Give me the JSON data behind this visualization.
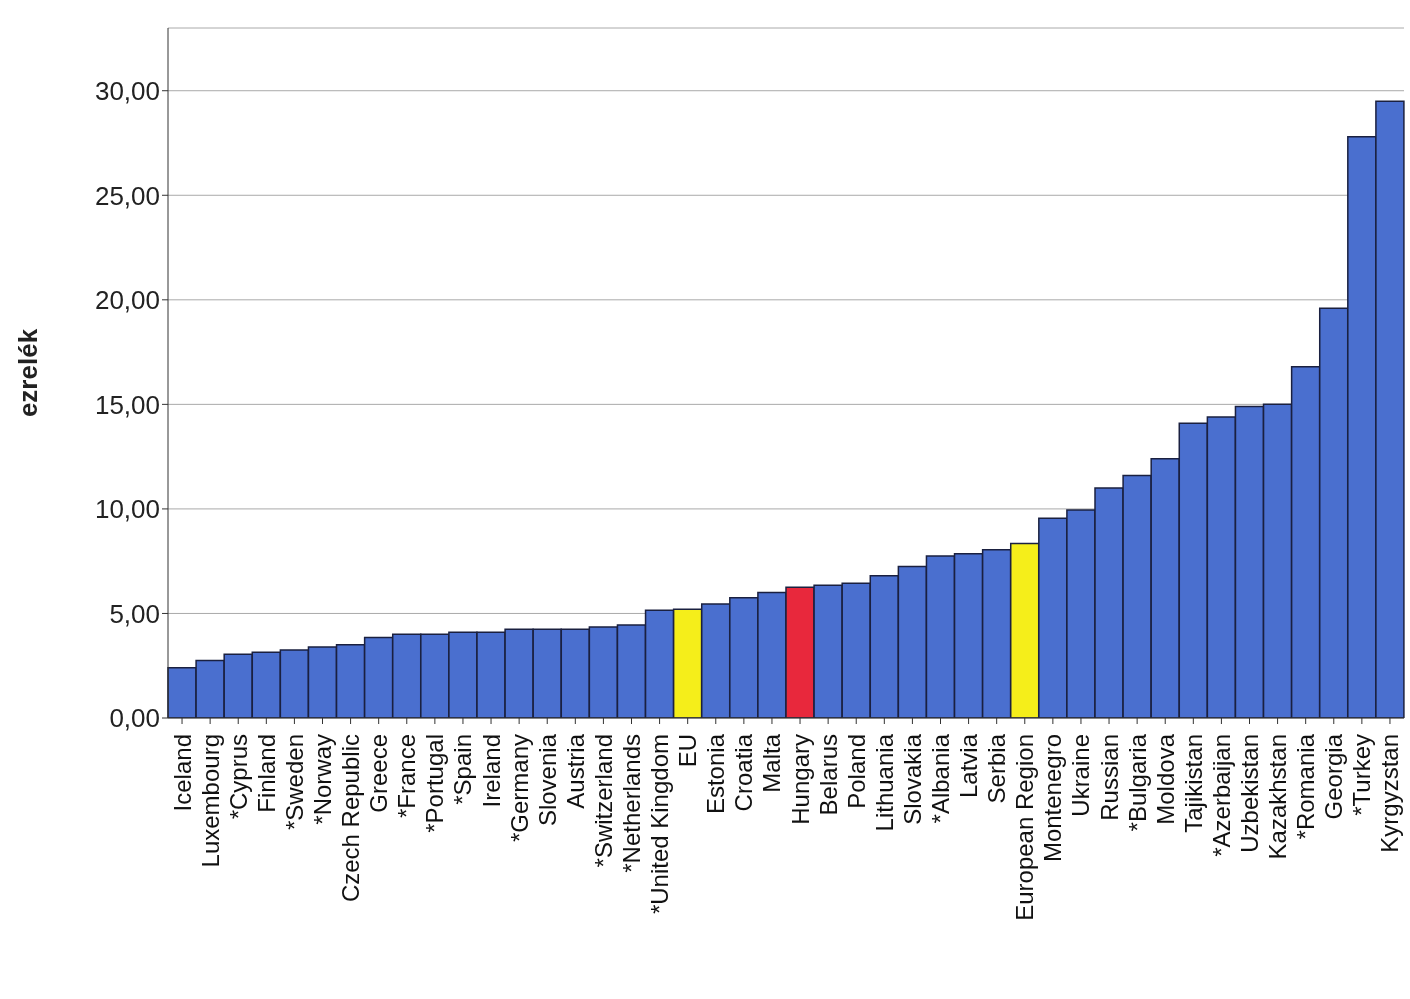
{
  "chart_data": {
    "type": "bar",
    "ylabel": "ezrelék",
    "categories": [
      "Iceland",
      "Luxembourg",
      "*Cyprus",
      "Finland",
      "*Sweden",
      "*Norway",
      "Czech Republic",
      "Greece",
      "*France",
      "*Portugal",
      "*Spain",
      "Ireland",
      "*Germany",
      "Slovenia",
      "Austria",
      "*Switzerland",
      "*Netherlands",
      "*United Kingdom",
      "EU",
      "Estonia",
      "Croatia",
      "Malta",
      "Hungary",
      "Belarus",
      "Poland",
      "Lithuania",
      "Slovakia",
      "*Albania",
      "Latvia",
      "Serbia",
      "European Region",
      "Montenegro",
      "Ukraine",
      "Russian",
      "*Bulgaria",
      "Moldova",
      "Tajikistan",
      "*Azerbaijan",
      "Uzbekistan",
      "Kazakhstan",
      "*Romania",
      "Georgia",
      "*Turkey",
      "Kyrgyzstan"
    ],
    "values": [
      2.4,
      2.75,
      3.05,
      3.15,
      3.25,
      3.4,
      3.5,
      3.85,
      4.0,
      4.0,
      4.1,
      4.1,
      4.25,
      4.25,
      4.25,
      4.35,
      4.45,
      5.15,
      5.2,
      5.45,
      5.75,
      6.0,
      6.25,
      6.35,
      6.45,
      6.8,
      7.25,
      7.75,
      7.85,
      8.05,
      8.35,
      9.55,
      9.95,
      11.0,
      11.6,
      12.4,
      14.1,
      14.4,
      14.9,
      15.0,
      16.8,
      19.6,
      27.8,
      29.5
    ],
    "colors": [
      "#4a6fcf",
      "#4a6fcf",
      "#4a6fcf",
      "#4a6fcf",
      "#4a6fcf",
      "#4a6fcf",
      "#4a6fcf",
      "#4a6fcf",
      "#4a6fcf",
      "#4a6fcf",
      "#4a6fcf",
      "#4a6fcf",
      "#4a6fcf",
      "#4a6fcf",
      "#4a6fcf",
      "#4a6fcf",
      "#4a6fcf",
      "#4a6fcf",
      "#f5ee1a",
      "#4a6fcf",
      "#4a6fcf",
      "#4a6fcf",
      "#e8283c",
      "#4a6fcf",
      "#4a6fcf",
      "#4a6fcf",
      "#4a6fcf",
      "#4a6fcf",
      "#4a6fcf",
      "#4a6fcf",
      "#f5ee1a",
      "#4a6fcf",
      "#4a6fcf",
      "#4a6fcf",
      "#4a6fcf",
      "#4a6fcf",
      "#4a6fcf",
      "#4a6fcf",
      "#4a6fcf",
      "#4a6fcf",
      "#4a6fcf",
      "#4a6fcf",
      "#4a6fcf",
      "#4a6fcf"
    ],
    "ylim": [
      0,
      33
    ],
    "yticks": [
      {
        "value": 0,
        "label": "0,00"
      },
      {
        "value": 5,
        "label": "5,00"
      },
      {
        "value": 10,
        "label": "10,00"
      },
      {
        "value": 15,
        "label": "15,00"
      },
      {
        "value": 20,
        "label": "20,00"
      },
      {
        "value": 25,
        "label": "25,00"
      },
      {
        "value": 30,
        "label": "30,00"
      }
    ],
    "grid": "y"
  }
}
